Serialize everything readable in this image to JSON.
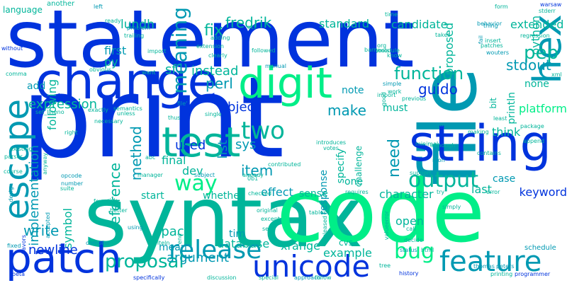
{
  "palette": {
    "background": "#ffffff",
    "blue": "#0033dd",
    "teal": "#00b59a",
    "cyan": "#0099b2",
    "green": "#00ee88"
  },
  "words": [
    "statement",
    "print",
    "syntax",
    "code",
    "file",
    "change",
    "digit",
    "string",
    "escape",
    "patch",
    "test",
    "hex",
    "unicode",
    "feature",
    "pep",
    "function",
    "release",
    "output",
    "two",
    "fredrik",
    "extended",
    "standard",
    "candidate",
    "meaning",
    "fix",
    "first",
    "proposal",
    "reference",
    "expression",
    "implementation",
    "lundh",
    "sf",
    "perl",
    "instead",
    "stdout",
    "guido",
    "list",
    "object",
    "item",
    "sys",
    "used",
    "final",
    "dev",
    "way",
    "make",
    "method",
    "write",
    "symbol",
    "argument",
    "newline",
    "space",
    "mean",
    "effect",
    "database",
    "xrange",
    "example",
    "tim",
    "cvs",
    "open",
    "bug",
    "keyword",
    "case",
    "last",
    "character",
    "need",
    "one",
    "must",
    "bit",
    "println",
    "platform",
    "think",
    "specify",
    "challenge",
    "response",
    "whether",
    "start",
    "sense",
    "add",
    "following",
    "note",
    "none",
    "proposed",
    "python",
    "py",
    "language",
    "another",
    "left",
    "ready",
    "behavior",
    "form",
    "warsaw",
    "stderr",
    "without",
    "comma",
    "parser",
    "existing",
    "course",
    "opcode",
    "number",
    "anyway",
    "right",
    "suite",
    "design",
    "accepted",
    "fixed",
    "flavors",
    "beta",
    "specifically",
    "discussion",
    "special",
    "approach",
    "follow",
    "tree",
    "history",
    "thomas",
    "peters",
    "programmer",
    "schedule",
    "error",
    "package",
    "append",
    "contains",
    "minimal",
    "support",
    "rather",
    "making",
    "previous",
    "least",
    "import",
    "simple",
    "work",
    "good",
    "votes",
    "contributed",
    "single",
    "semantics",
    "unless",
    "exactly",
    "necessary",
    "set_lineno",
    "manager",
    "subject",
    "already",
    "checked",
    "abc",
    "xml",
    "regression",
    "insert",
    "wouters",
    "barry",
    "org",
    "module",
    "know",
    "tools",
    "thing",
    "takes",
    "patches",
    "fail",
    "time",
    "followed",
    "clearly",
    "extension",
    "adding",
    "act",
    "problem",
    "trailing",
    "want",
    "obvious",
    "manual",
    "thus",
    "introduces",
    "0b1",
    "although",
    "mon",
    "try",
    "simply",
    "requires",
    "tables",
    "original",
    "except",
    "sep",
    "released",
    "valueerror",
    "call",
    "decide",
    "status",
    "html",
    "printing",
    "using",
    "compiler",
    "writeln",
    "end",
    "better",
    "risk",
    "fewer",
    "file'",
    "import'"
  ]
}
